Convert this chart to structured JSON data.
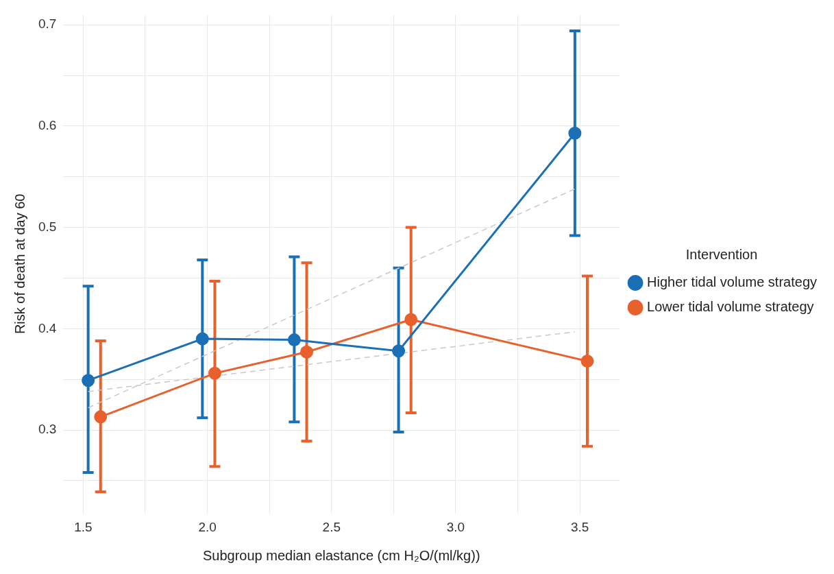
{
  "chart_data": {
    "type": "line",
    "xlabel": "Subgroup median elastance (cm H₂O/(ml/kg))",
    "ylabel": "Risk of death at day 60",
    "legend_title": "Intervention",
    "legend": "right",
    "grid": true,
    "marker": "circle",
    "line_style": "solid",
    "xlim": [
      1.42,
      3.66
    ],
    "xticks": [
      1.5,
      {
        "value": 1.75,
        "label": null
      },
      {
        "value": 2,
        "label": "2.0"
      },
      {
        "value": 2.25,
        "label": null
      },
      2.5,
      {
        "value": 2.75,
        "label": null
      },
      {
        "value": 3,
        "label": "3.0"
      },
      {
        "value": 3.25,
        "label": null
      },
      3.5
    ],
    "ylim": [
      0.218,
      0.71
    ],
    "yticks": [
      {
        "value": 0.25,
        "label": null
      },
      0.3,
      {
        "value": 0.35,
        "label": null
      },
      0.4,
      {
        "value": 0.45,
        "label": null
      },
      0.5,
      {
        "value": 0.55,
        "label": null
      },
      0.6,
      {
        "value": 0.65,
        "label": null
      },
      0.7
    ],
    "series": [
      {
        "name": "Higher tidal volume strategy",
        "color": "#1a6fb5",
        "x": [
          1.52,
          1.98,
          2.35,
          2.77,
          3.48
        ],
        "values": [
          0.349,
          0.39,
          0.389,
          0.378,
          0.593
        ],
        "errors": [
          [
            0.258,
            0.442
          ],
          [
            0.312,
            0.468
          ],
          [
            0.308,
            0.471
          ],
          [
            0.298,
            0.46
          ],
          [
            0.492,
            0.694
          ]
        ]
      },
      {
        "name": "Lower tidal volume strategy",
        "color": "#e8602c",
        "x": [
          1.57,
          2.03,
          2.4,
          2.82,
          3.53
        ],
        "values": [
          0.313,
          0.356,
          0.377,
          0.409,
          0.368
        ],
        "errors": [
          [
            0.239,
            0.388
          ],
          [
            0.264,
            0.447
          ],
          [
            0.289,
            0.465
          ],
          [
            0.317,
            0.5
          ],
          [
            0.284,
            0.452
          ]
        ]
      },
      {
        "type": "line",
        "color": "#c8c8c8",
        "line_style": "dashed",
        "marker": "none",
        "x": [
          1.52,
          3.48
        ],
        "values": [
          0.322,
          0.538
        ]
      },
      {
        "type": "line",
        "color": "#c8c8c8",
        "line_style": "dashed",
        "marker": "none",
        "x": [
          1.52,
          3.48
        ],
        "values": [
          0.338,
          0.397
        ]
      }
    ]
  }
}
